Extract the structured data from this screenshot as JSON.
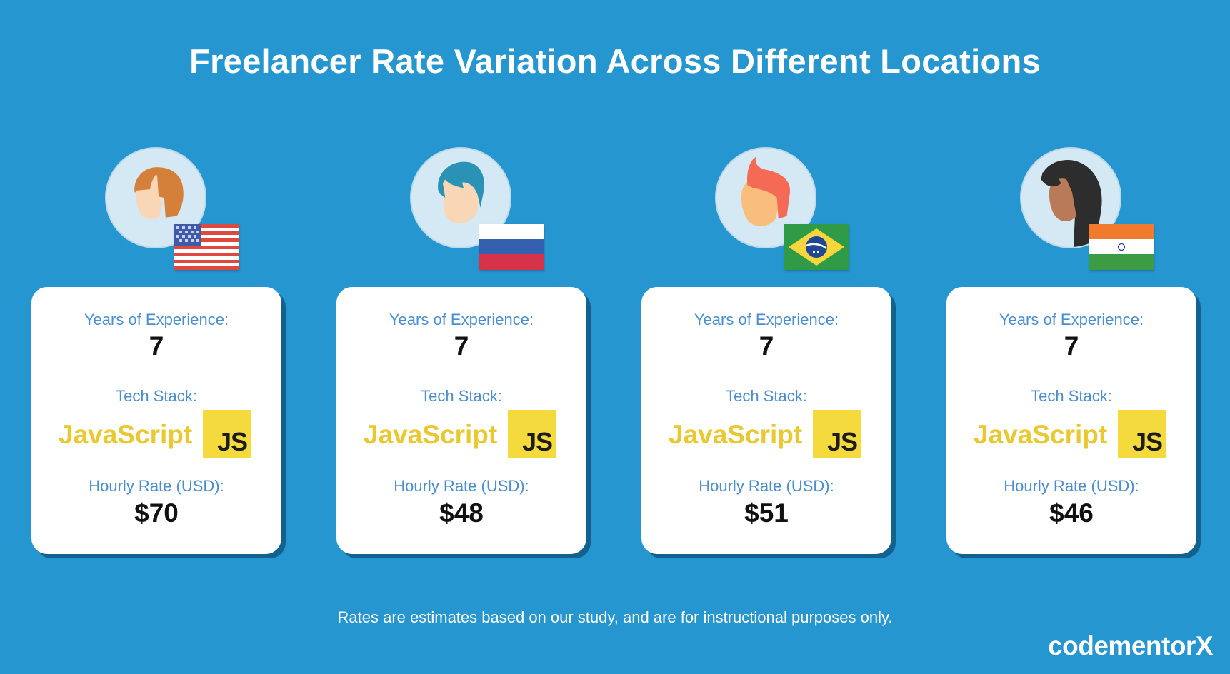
{
  "title": "Freelancer Rate Variation Across Different Locations",
  "labels": {
    "experience": "Years of Experience:",
    "stack": "Tech Stack:",
    "rate": "Hourly Rate (USD):"
  },
  "freelancers": [
    {
      "flag": "usa-flag",
      "avatar": "woman-short-orange-hair",
      "experience": "7",
      "stack": "JavaScript",
      "stack_logo": "JS",
      "rate": "$70"
    },
    {
      "flag": "russia-flag",
      "avatar": "man-teal-hair",
      "experience": "7",
      "stack": "JavaScript",
      "stack_logo": "JS",
      "rate": "$48"
    },
    {
      "flag": "brazil-flag",
      "avatar": "man-red-hair",
      "experience": "7",
      "stack": "JavaScript",
      "stack_logo": "JS",
      "rate": "$51"
    },
    {
      "flag": "india-flag",
      "avatar": "woman-long-dark-hair",
      "experience": "7",
      "stack": "JavaScript",
      "stack_logo": "JS",
      "rate": "$46"
    }
  ],
  "footnote": "Rates are estimates based on our study, and are for instructional purposes only.",
  "brand": "codementorX",
  "colors": {
    "background": "#2596cf",
    "label": "#4a8ed0",
    "javascript_yellow": "#f5da3e",
    "javascript_text": "#e9c830"
  }
}
